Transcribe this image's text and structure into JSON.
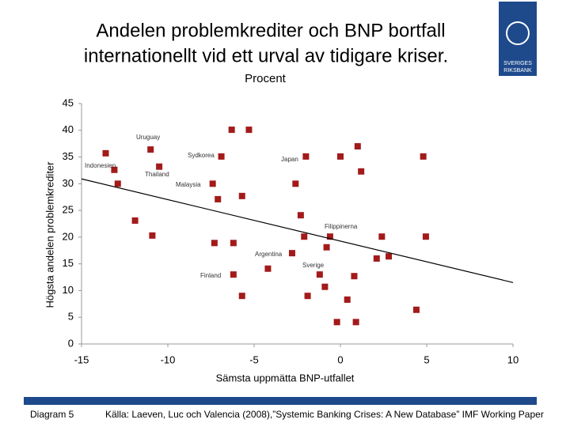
{
  "chart_data": {
    "type": "scatter",
    "title_lines": [
      "Andelen problemkrediter och BNP bortfall",
      "internationellt vid ett urval av tidigare kriser."
    ],
    "subtitle": "Procent",
    "x_label": "Sämsta uppmätta BNP-utfallet",
    "y_label": "Högsta andelen problemkrediter",
    "xlim": [
      -15,
      10
    ],
    "xticks": [
      -15,
      -10,
      -5,
      0,
      5,
      10
    ],
    "ylim": [
      0,
      45
    ],
    "yticks": [
      0,
      5,
      10,
      15,
      20,
      25,
      30,
      35,
      40,
      45
    ],
    "grid": false,
    "color": "#a31a1a",
    "x": [
      -13.6,
      -13.1,
      -12.9,
      -11.0,
      -10.5,
      -11.9,
      -10.9,
      -6.3,
      -5.3,
      -6.9,
      -7.4,
      -7.1,
      -5.7,
      -7.3,
      -6.2,
      -6.2,
      -5.7,
      -4.2,
      -2.0,
      -2.6,
      -2.3,
      -2.1,
      -2.8,
      -1.9,
      -1.2,
      -0.9,
      -0.8,
      -0.6,
      0.0,
      1.0,
      1.2,
      0.8,
      0.4,
      -0.2,
      0.9,
      2.1,
      2.8,
      2.4,
      4.8,
      4.95,
      4.4
    ],
    "values": [
      35.7,
      32.6,
      30.0,
      36.4,
      33.2,
      23.1,
      20.3,
      40.1,
      40.1,
      35.1,
      30.0,
      27.1,
      27.7,
      18.9,
      18.9,
      13.0,
      9.0,
      14.1,
      35.1,
      30.0,
      24.1,
      20.1,
      17.0,
      9.0,
      13.0,
      10.7,
      18.1,
      20.1,
      35.1,
      37.0,
      32.3,
      12.7,
      8.3,
      4.1,
      4.1,
      16.0,
      16.4,
      20.1,
      35.1,
      20.1,
      6.4
    ],
    "trend": {
      "x": [
        -15,
        10
      ],
      "values": [
        30.9,
        11.5
      ],
      "color": "#000000"
    },
    "annotations": [
      "Uruguay",
      "Sydkorea",
      "Japan",
      "Indonesien",
      "Thailand",
      "Malaysia",
      "Filippinerna",
      "Argentina",
      "Sverige",
      "Finland"
    ]
  },
  "logo": {
    "lines": [
      "SVERIGES",
      "RIKSBANK"
    ]
  },
  "footer": {
    "label": "Diagram 5",
    "source": "Källa: Laeven, Luc och Valencia (2008),”Systemic Banking Crises: A New Database” IMF Working Paper"
  }
}
